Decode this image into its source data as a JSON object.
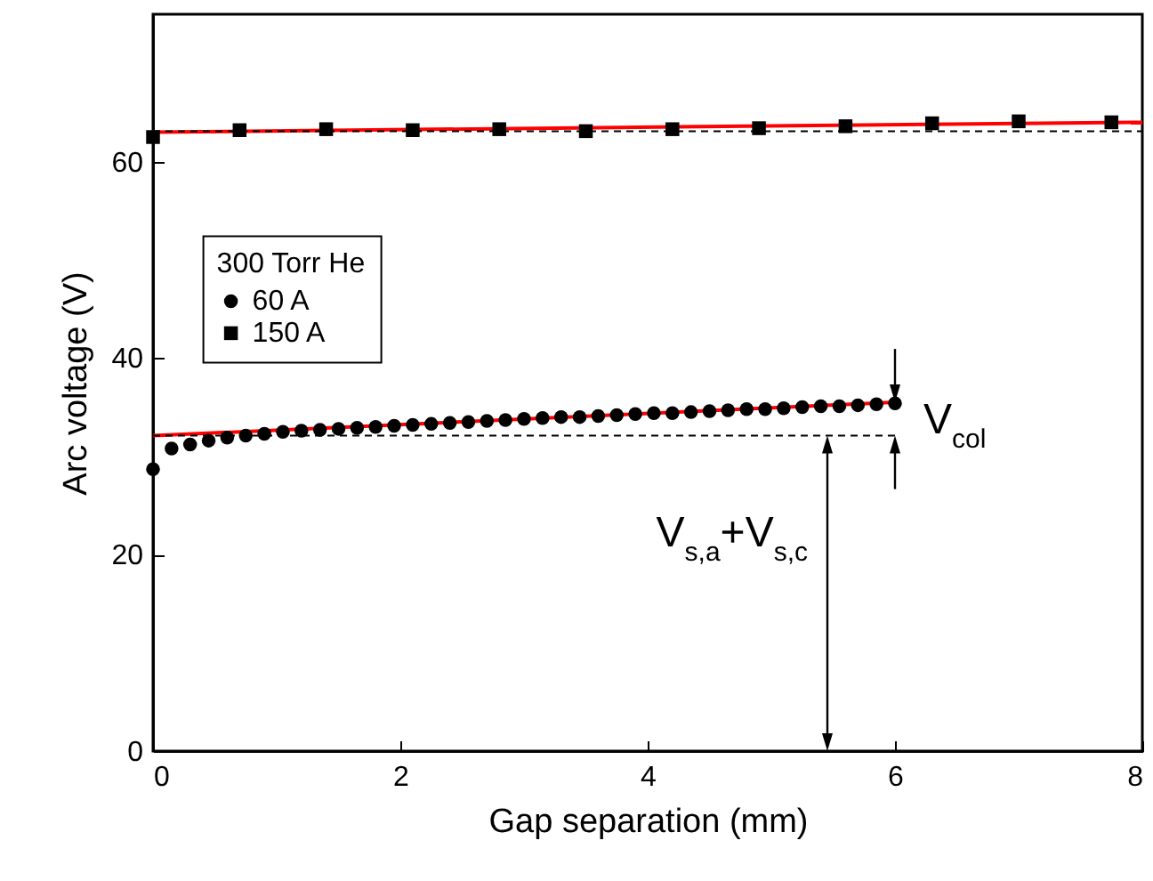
{
  "chart_data": {
    "type": "scatter",
    "xlabel": "Gap separation (mm)",
    "ylabel": "Arc voltage (V)",
    "legend_title": "300 Torr He",
    "legend": "top left",
    "grid": false,
    "xlim": [
      0,
      8
    ],
    "ylim": [
      0,
      75
    ],
    "xticks": [
      0,
      2,
      4,
      6,
      8
    ],
    "yticks": [
      0,
      20,
      40,
      60
    ],
    "series": [
      {
        "name": "60 A",
        "marker": "circle",
        "color": "#000000",
        "x": [
          0,
          0.15,
          0.3,
          0.45,
          0.6,
          0.75,
          0.9,
          1.05,
          1.2,
          1.35,
          1.5,
          1.65,
          1.8,
          1.95,
          2.1,
          2.25,
          2.4,
          2.55,
          2.7,
          2.85,
          3.0,
          3.15,
          3.3,
          3.45,
          3.6,
          3.75,
          3.9,
          4.05,
          4.2,
          4.35,
          4.5,
          4.65,
          4.8,
          4.95,
          5.1,
          5.25,
          5.4,
          5.55,
          5.7,
          5.85,
          6.0
        ],
        "values": [
          28.7,
          30.8,
          31.2,
          31.6,
          31.9,
          32.1,
          32.3,
          32.5,
          32.6,
          32.7,
          32.8,
          32.9,
          33.0,
          33.1,
          33.2,
          33.3,
          33.4,
          33.5,
          33.6,
          33.7,
          33.8,
          33.9,
          34.0,
          34.0,
          34.1,
          34.2,
          34.3,
          34.4,
          34.4,
          34.5,
          34.6,
          34.7,
          34.8,
          34.8,
          34.9,
          35.0,
          35.1,
          35.1,
          35.2,
          35.3,
          35.4
        ]
      },
      {
        "name": "150 A",
        "marker": "square",
        "color": "#000000",
        "x": [
          0,
          0.7,
          1.4,
          2.1,
          2.8,
          3.5,
          4.2,
          4.9,
          5.6,
          6.3,
          7.0,
          7.75
        ],
        "values": [
          62.5,
          63.2,
          63.3,
          63.2,
          63.3,
          63.1,
          63.3,
          63.4,
          63.6,
          63.9,
          64.1,
          64.0
        ]
      },
      {
        "type": "line",
        "marker": "none",
        "line_style": "solid",
        "color": "#ff0000",
        "x": [
          0,
          6
        ],
        "values": [
          32.1,
          35.5
        ]
      },
      {
        "type": "line",
        "marker": "none",
        "line_style": "solid",
        "color": "#ff0000",
        "x": [
          0,
          8
        ],
        "values": [
          63.0,
          64.0
        ]
      },
      {
        "type": "line",
        "marker": "none",
        "line_style": "dashed",
        "color": "#000000",
        "x": [
          0,
          8
        ],
        "values": [
          63.1,
          63.1
        ]
      },
      {
        "type": "line",
        "marker": "none",
        "line_style": "dashed",
        "color": "#000000",
        "x": [
          0,
          6
        ],
        "values": [
          32.1,
          32.1
        ]
      }
    ],
    "annotations": [
      "V$_{col}$",
      "V$_{s,a}$+V$_{s,c}$"
    ]
  }
}
